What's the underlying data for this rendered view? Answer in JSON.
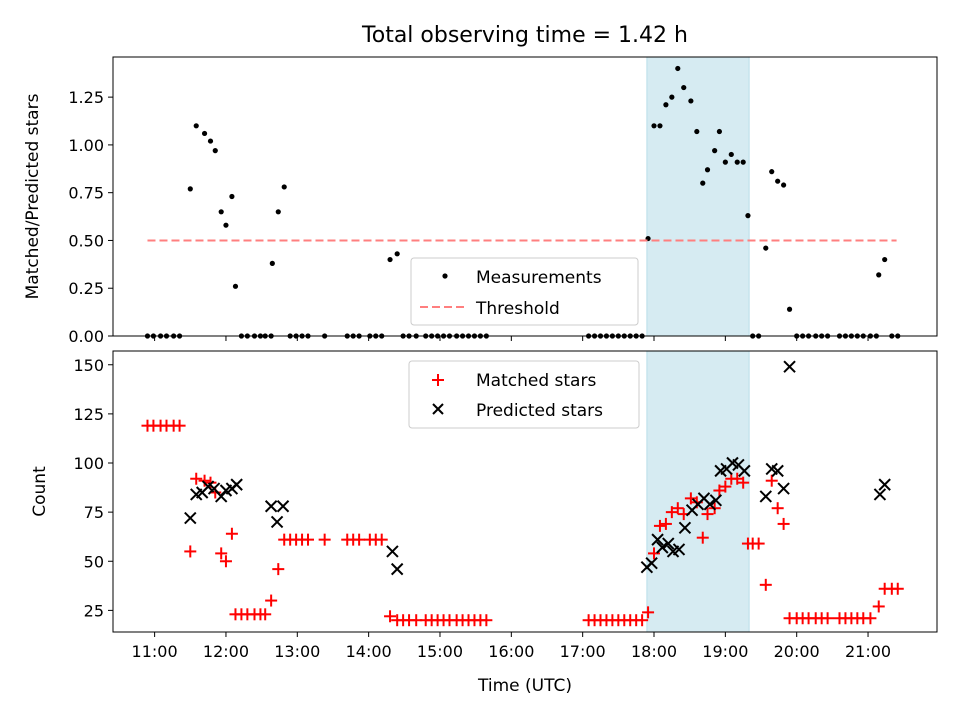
{
  "figure": {
    "title": "Total observing time = 1.42 h",
    "xlabel": "Time (UTC)",
    "x_ticks": [
      "11:00",
      "12:00",
      "13:00",
      "14:00",
      "15:00",
      "16:00",
      "17:00",
      "18:00",
      "19:00",
      "20:00",
      "21:00"
    ],
    "highlight_band": {
      "start": "17:54",
      "end": "19:20",
      "color": "#add8e6"
    }
  },
  "chart_data": [
    {
      "type": "scatter",
      "ylabel": "Matched/Predicted stars",
      "xlim": [
        "10:25",
        "21:58"
      ],
      "ylim": [
        0,
        1.46
      ],
      "y_ticks": [
        "0.00",
        "0.25",
        "0.50",
        "0.75",
        "1.00",
        "1.25"
      ],
      "legend": {
        "location": "lower-center",
        "entries": [
          "Measurements",
          "Threshold"
        ]
      },
      "threshold": {
        "name": "Threshold",
        "value": 0.5,
        "x_range": [
          "10:54",
          "21:24"
        ],
        "color": "#ff7f7f",
        "style": "dashed"
      },
      "series": [
        {
          "name": "Measurements",
          "marker": "dot",
          "color": "#000000",
          "points": [
            [
              "10:54",
              0
            ],
            [
              "10:59",
              0
            ],
            [
              "11:05",
              0
            ],
            [
              "11:10",
              0
            ],
            [
              "11:16",
              0
            ],
            [
              "11:21",
              0
            ],
            [
              "11:30",
              0.77
            ],
            [
              "11:35",
              1.1
            ],
            [
              "11:42",
              1.06
            ],
            [
              "11:47",
              1.02
            ],
            [
              "11:51",
              0.97
            ],
            [
              "11:56",
              0.65
            ],
            [
              "12:00",
              0.58
            ],
            [
              "12:05",
              0.73
            ],
            [
              "12:08",
              0.26
            ],
            [
              "12:13",
              0
            ],
            [
              "12:18",
              0
            ],
            [
              "12:24",
              0
            ],
            [
              "12:29",
              0
            ],
            [
              "12:33",
              0
            ],
            [
              "12:38",
              0
            ],
            [
              "12:39",
              0.38
            ],
            [
              "12:44",
              0.65
            ],
            [
              "12:49",
              0.78
            ],
            [
              "12:54",
              0
            ],
            [
              "12:59",
              0
            ],
            [
              "13:04",
              0
            ],
            [
              "13:09",
              0
            ],
            [
              "13:23",
              0
            ],
            [
              "13:42",
              0
            ],
            [
              "13:47",
              0
            ],
            [
              "13:52",
              0
            ],
            [
              "14:01",
              0
            ],
            [
              "14:06",
              0
            ],
            [
              "14:11",
              0
            ],
            [
              "14:18",
              0.4
            ],
            [
              "14:24",
              0.43
            ],
            [
              "14:29",
              0
            ],
            [
              "14:34",
              0
            ],
            [
              "14:40",
              0
            ],
            [
              "14:48",
              0
            ],
            [
              "14:53",
              0
            ],
            [
              "14:58",
              0
            ],
            [
              "15:03",
              0
            ],
            [
              "15:08",
              0
            ],
            [
              "15:14",
              0
            ],
            [
              "15:19",
              0
            ],
            [
              "15:24",
              0
            ],
            [
              "15:29",
              0
            ],
            [
              "15:34",
              0
            ],
            [
              "15:39",
              0
            ],
            [
              "17:05",
              0
            ],
            [
              "17:10",
              0
            ],
            [
              "17:15",
              0
            ],
            [
              "17:20",
              0
            ],
            [
              "17:25",
              0
            ],
            [
              "17:30",
              0
            ],
            [
              "17:35",
              0
            ],
            [
              "17:40",
              0
            ],
            [
              "17:45",
              0
            ],
            [
              "17:50",
              0
            ],
            [
              "17:55",
              0.51
            ],
            [
              "18:00",
              1.1
            ],
            [
              "18:05",
              1.1
            ],
            [
              "18:10",
              1.21
            ],
            [
              "18:15",
              1.25
            ],
            [
              "18:20",
              1.4
            ],
            [
              "18:25",
              1.3
            ],
            [
              "18:31",
              1.23
            ],
            [
              "18:36",
              1.07
            ],
            [
              "18:41",
              0.8
            ],
            [
              "18:45",
              0.87
            ],
            [
              "18:51",
              0.97
            ],
            [
              "18:55",
              1.07
            ],
            [
              "19:00",
              0.91
            ],
            [
              "19:05",
              0.95
            ],
            [
              "19:10",
              0.91
            ],
            [
              "19:15",
              0.91
            ],
            [
              "19:19",
              0.63
            ],
            [
              "19:23",
              0
            ],
            [
              "19:28",
              0
            ],
            [
              "19:34",
              0.46
            ],
            [
              "19:39",
              0.86
            ],
            [
              "19:44",
              0.81
            ],
            [
              "19:49",
              0.79
            ],
            [
              "19:54",
              0.14
            ],
            [
              "20:00",
              0
            ],
            [
              "20:05",
              0
            ],
            [
              "20:10",
              0
            ],
            [
              "20:16",
              0
            ],
            [
              "20:21",
              0
            ],
            [
              "20:26",
              0
            ],
            [
              "20:36",
              0
            ],
            [
              "20:41",
              0
            ],
            [
              "20:46",
              0
            ],
            [
              "20:51",
              0
            ],
            [
              "20:56",
              0
            ],
            [
              "21:02",
              0
            ],
            [
              "21:07",
              0
            ],
            [
              "21:09",
              0.32
            ],
            [
              "21:14",
              0.4
            ],
            [
              "21:20",
              0
            ],
            [
              "21:25",
              0
            ]
          ]
        }
      ]
    },
    {
      "type": "scatter",
      "ylabel": "Count",
      "xlim": [
        "10:25",
        "21:58"
      ],
      "ylim": [
        14,
        157
      ],
      "y_ticks": [
        "25",
        "50",
        "75",
        "100",
        "125",
        "150"
      ],
      "legend": {
        "location": "upper-center",
        "entries": [
          "Matched stars",
          "Predicted stars"
        ]
      },
      "series": [
        {
          "name": "Matched stars",
          "marker": "plus",
          "color": "#ff0000",
          "points": [
            [
              "10:54",
              119
            ],
            [
              "10:59",
              119
            ],
            [
              "11:05",
              119
            ],
            [
              "11:10",
              119
            ],
            [
              "11:16",
              119
            ],
            [
              "11:21",
              119
            ],
            [
              "11:30",
              55
            ],
            [
              "11:35",
              92
            ],
            [
              "11:42",
              91
            ],
            [
              "11:47",
              90
            ],
            [
              "11:51",
              85
            ],
            [
              "11:56",
              54
            ],
            [
              "12:00",
              50
            ],
            [
              "12:05",
              64
            ],
            [
              "12:08",
              23
            ],
            [
              "12:13",
              23
            ],
            [
              "12:18",
              23
            ],
            [
              "12:24",
              23
            ],
            [
              "12:29",
              23
            ],
            [
              "12:33",
              23
            ],
            [
              "12:38",
              30
            ],
            [
              "12:44",
              46
            ],
            [
              "12:49",
              61
            ],
            [
              "12:54",
              61
            ],
            [
              "12:59",
              61
            ],
            [
              "13:04",
              61
            ],
            [
              "13:09",
              61
            ],
            [
              "13:23",
              61
            ],
            [
              "13:42",
              61
            ],
            [
              "13:47",
              61
            ],
            [
              "13:52",
              61
            ],
            [
              "14:01",
              61
            ],
            [
              "14:06",
              61
            ],
            [
              "14:11",
              61
            ],
            [
              "14:18",
              22
            ],
            [
              "14:24",
              20
            ],
            [
              "14:29",
              20
            ],
            [
              "14:34",
              20
            ],
            [
              "14:40",
              20
            ],
            [
              "14:48",
              20
            ],
            [
              "14:53",
              20
            ],
            [
              "14:58",
              20
            ],
            [
              "15:03",
              20
            ],
            [
              "15:08",
              20
            ],
            [
              "15:14",
              20
            ],
            [
              "15:19",
              20
            ],
            [
              "15:24",
              20
            ],
            [
              "15:29",
              20
            ],
            [
              "15:34",
              20
            ],
            [
              "15:39",
              20
            ],
            [
              "17:05",
              20
            ],
            [
              "17:10",
              20
            ],
            [
              "17:15",
              20
            ],
            [
              "17:20",
              20
            ],
            [
              "17:25",
              20
            ],
            [
              "17:30",
              20
            ],
            [
              "17:35",
              20
            ],
            [
              "17:40",
              20
            ],
            [
              "17:45",
              20
            ],
            [
              "17:50",
              20
            ],
            [
              "17:55",
              24
            ],
            [
              "18:00",
              54
            ],
            [
              "18:05",
              68
            ],
            [
              "18:10",
              69
            ],
            [
              "18:15",
              75
            ],
            [
              "18:20",
              77
            ],
            [
              "18:25",
              74
            ],
            [
              "18:31",
              82
            ],
            [
              "18:36",
              80
            ],
            [
              "18:41",
              62
            ],
            [
              "18:45",
              74
            ],
            [
              "18:51",
              77
            ],
            [
              "18:55",
              86
            ],
            [
              "19:00",
              88
            ],
            [
              "19:05",
              92
            ],
            [
              "19:10",
              92
            ],
            [
              "19:15",
              90
            ],
            [
              "19:19",
              59
            ],
            [
              "19:23",
              59
            ],
            [
              "19:28",
              59
            ],
            [
              "19:34",
              38
            ],
            [
              "19:39",
              91
            ],
            [
              "19:44",
              77
            ],
            [
              "19:49",
              69
            ],
            [
              "19:54",
              21
            ],
            [
              "20:00",
              21
            ],
            [
              "20:05",
              21
            ],
            [
              "20:10",
              21
            ],
            [
              "20:16",
              21
            ],
            [
              "20:21",
              21
            ],
            [
              "20:26",
              21
            ],
            [
              "20:36",
              21
            ],
            [
              "20:41",
              21
            ],
            [
              "20:46",
              21
            ],
            [
              "20:51",
              21
            ],
            [
              "20:56",
              21
            ],
            [
              "21:02",
              21
            ],
            [
              "21:09",
              27
            ],
            [
              "21:14",
              36
            ],
            [
              "21:20",
              36
            ],
            [
              "21:25",
              36
            ]
          ]
        },
        {
          "name": "Predicted stars",
          "marker": "x",
          "color": "#000000",
          "points": [
            [
              "11:30",
              72
            ],
            [
              "11:35",
              84
            ],
            [
              "11:40",
              85
            ],
            [
              "11:45",
              88
            ],
            [
              "11:50",
              87
            ],
            [
              "11:56",
              83
            ],
            [
              "12:00",
              86
            ],
            [
              "12:05",
              87
            ],
            [
              "12:09",
              89
            ],
            [
              "12:38",
              78
            ],
            [
              "12:43",
              70
            ],
            [
              "12:48",
              78
            ],
            [
              "14:20",
              55
            ],
            [
              "14:24",
              46
            ],
            [
              "17:54",
              47
            ],
            [
              "17:58",
              49
            ],
            [
              "18:03",
              61
            ],
            [
              "18:07",
              57
            ],
            [
              "18:12",
              59
            ],
            [
              "18:16",
              55
            ],
            [
              "18:21",
              56
            ],
            [
              "18:26",
              67
            ],
            [
              "18:32",
              76
            ],
            [
              "18:37",
              79
            ],
            [
              "18:42",
              82
            ],
            [
              "18:47",
              79
            ],
            [
              "18:52",
              81
            ],
            [
              "18:56",
              96
            ],
            [
              "19:01",
              97
            ],
            [
              "19:06",
              100
            ],
            [
              "19:11",
              99
            ],
            [
              "19:16",
              96
            ],
            [
              "19:34",
              83
            ],
            [
              "19:39",
              97
            ],
            [
              "19:44",
              96
            ],
            [
              "19:49",
              87
            ],
            [
              "19:54",
              149
            ],
            [
              "21:10",
              84
            ],
            [
              "21:14",
              89
            ]
          ]
        }
      ]
    }
  ]
}
